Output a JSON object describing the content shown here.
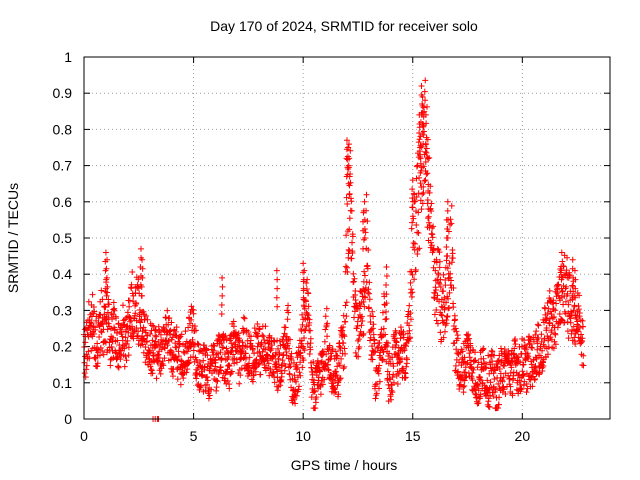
{
  "chart_data": {
    "type": "scatter",
    "title": "Day 170 of 2024, SRMTID for receiver solo",
    "xlabel": "GPS time / hours",
    "ylabel": "SRMTID / TECUs",
    "xlim": [
      0,
      24
    ],
    "ylim": [
      0,
      1
    ],
    "xticks": [
      0,
      5,
      10,
      15,
      20
    ],
    "xtick_labels": [
      "0",
      "5",
      "10",
      "15",
      "20"
    ],
    "yticks": [
      0,
      0.1,
      0.2,
      0.3,
      0.4,
      0.5,
      0.6,
      0.7,
      0.8,
      0.9,
      1
    ],
    "ytick_labels": [
      "0",
      "0.1",
      "0.2",
      "0.3",
      "0.4",
      "0.5",
      "0.6",
      "0.7",
      "0.8",
      "0.9",
      "1"
    ],
    "grid": true,
    "marker": "+",
    "color": "#ff0000",
    "series": [
      {
        "name": "solo",
        "x": [
          0.0,
          0.1,
          0.2,
          0.3,
          0.4,
          0.5,
          0.6,
          0.7,
          0.8,
          0.9,
          1.0,
          1.1,
          1.2,
          1.3,
          1.4,
          1.5,
          1.6,
          1.7,
          1.8,
          1.9,
          2.0,
          2.1,
          2.2,
          2.3,
          2.4,
          2.5,
          2.6,
          2.7,
          2.8,
          2.9,
          3.0,
          3.1,
          3.2,
          3.3,
          3.4,
          3.5,
          3.6,
          3.7,
          3.8,
          3.9,
          4.0,
          4.1,
          4.2,
          4.3,
          4.4,
          4.5,
          4.6,
          4.7,
          4.8,
          4.9,
          5.0,
          5.1,
          5.2,
          5.3,
          5.4,
          5.5,
          5.6,
          5.7,
          5.8,
          5.9,
          6.0,
          6.1,
          6.2,
          6.3,
          6.4,
          6.5,
          6.6,
          6.7,
          6.8,
          6.9,
          7.0,
          7.1,
          7.2,
          7.3,
          7.4,
          7.5,
          7.6,
          7.7,
          7.8,
          7.9,
          8.0,
          8.1,
          8.2,
          8.3,
          8.4,
          8.5,
          8.6,
          8.7,
          8.8,
          8.9,
          9.0,
          9.1,
          9.2,
          9.3,
          9.4,
          9.5,
          9.6,
          9.7,
          9.8,
          9.9,
          10.0,
          10.1,
          10.2,
          10.3,
          10.4,
          10.5,
          10.6,
          10.7,
          10.8,
          10.9,
          11.0,
          11.1,
          11.2,
          11.3,
          11.4,
          11.5,
          11.6,
          11.7,
          11.8,
          11.9,
          12.0,
          12.1,
          12.2,
          12.3,
          12.4,
          12.5,
          12.6,
          12.7,
          12.8,
          12.9,
          13.0,
          13.1,
          13.2,
          13.3,
          13.4,
          13.5,
          13.6,
          13.7,
          13.8,
          13.9,
          14.0,
          14.1,
          14.2,
          14.3,
          14.4,
          14.5,
          14.6,
          14.7,
          14.8,
          14.9,
          15.0,
          15.1,
          15.2,
          15.3,
          15.4,
          15.5,
          15.6,
          15.7,
          15.8,
          15.9,
          16.0,
          16.1,
          16.2,
          16.3,
          16.4,
          16.5,
          16.6,
          16.7,
          16.8,
          16.9,
          17.0,
          17.1,
          17.2,
          17.3,
          17.4,
          17.5,
          17.6,
          17.7,
          17.8,
          17.9,
          18.0,
          18.1,
          18.2,
          18.3,
          18.4,
          18.5,
          18.6,
          18.7,
          18.8,
          18.9,
          19.0,
          19.1,
          19.2,
          19.3,
          19.4,
          19.5,
          19.6,
          19.7,
          19.8,
          19.9,
          20.0,
          20.1,
          20.2,
          20.3,
          20.4,
          20.5,
          20.6,
          20.7,
          20.8,
          20.9,
          21.0,
          21.1,
          21.2,
          21.3,
          21.4,
          21.5,
          21.6,
          21.7,
          21.8,
          21.9,
          22.0,
          22.1,
          22.2,
          22.3,
          22.4,
          22.5,
          22.6,
          22.7,
          22.8
        ],
        "y": [
          0.2,
          0.18,
          0.25,
          0.22,
          0.27,
          0.24,
          0.2,
          0.23,
          0.28,
          0.22,
          0.3,
          0.26,
          0.21,
          0.24,
          0.25,
          0.22,
          0.19,
          0.21,
          0.24,
          0.2,
          0.23,
          0.27,
          0.31,
          0.29,
          0.33,
          0.3,
          0.27,
          0.24,
          0.22,
          0.21,
          0.2,
          0.19,
          0.21,
          0.18,
          0.2,
          0.17,
          0.19,
          0.21,
          0.23,
          0.22,
          0.2,
          0.18,
          0.19,
          0.17,
          0.16,
          0.17,
          0.19,
          0.2,
          0.22,
          0.25,
          0.23,
          0.18,
          0.15,
          0.14,
          0.13,
          0.15,
          0.14,
          0.12,
          0.13,
          0.15,
          0.14,
          0.16,
          0.18,
          0.2,
          0.17,
          0.15,
          0.14,
          0.18,
          0.21,
          0.19,
          0.18,
          0.16,
          0.2,
          0.22,
          0.19,
          0.18,
          0.17,
          0.16,
          0.19,
          0.21,
          0.19,
          0.18,
          0.2,
          0.19,
          0.17,
          0.16,
          0.18,
          0.17,
          0.15,
          0.14,
          0.16,
          0.18,
          0.22,
          0.27,
          0.15,
          0.11,
          0.1,
          0.12,
          0.14,
          0.19,
          0.24,
          0.27,
          0.31,
          0.2,
          0.1,
          0.08,
          0.09,
          0.11,
          0.13,
          0.15,
          0.2,
          0.24,
          0.15,
          0.13,
          0.12,
          0.14,
          0.13,
          0.17,
          0.21,
          0.22,
          0.52,
          0.62,
          0.55,
          0.33,
          0.26,
          0.24,
          0.28,
          0.27,
          0.35,
          0.5,
          0.32,
          0.23,
          0.21,
          0.12,
          0.14,
          0.16,
          0.24,
          0.28,
          0.21,
          0.11,
          0.12,
          0.15,
          0.18,
          0.16,
          0.19,
          0.18,
          0.17,
          0.18,
          0.22,
          0.34,
          0.48,
          0.54,
          0.58,
          0.63,
          0.68,
          0.75,
          0.83,
          0.64,
          0.55,
          0.45,
          0.4,
          0.35,
          0.38,
          0.27,
          0.31,
          0.32,
          0.4,
          0.43,
          0.48,
          0.22,
          0.18,
          0.15,
          0.13,
          0.14,
          0.16,
          0.2,
          0.17,
          0.15,
          0.13,
          0.11,
          0.1,
          0.12,
          0.14,
          0.13,
          0.11,
          0.1,
          0.12,
          0.11,
          0.09,
          0.1,
          0.12,
          0.14,
          0.13,
          0.15,
          0.14,
          0.12,
          0.15,
          0.16,
          0.14,
          0.13,
          0.16,
          0.15,
          0.14,
          0.17,
          0.15,
          0.16,
          0.18,
          0.2,
          0.17,
          0.19,
          0.22,
          0.24,
          0.27,
          0.29,
          0.24,
          0.28,
          0.31,
          0.33,
          0.36,
          0.35,
          0.38,
          0.31,
          0.32,
          0.3,
          0.29,
          0.27,
          0.28,
          0.26,
          0.17
        ],
        "spread": [
          0.05,
          0.06,
          0.06,
          0.05,
          0.06,
          0.06,
          0.05,
          0.05,
          0.06,
          0.05,
          0.07,
          0.07,
          0.05,
          0.05,
          0.06,
          0.05,
          0.05,
          0.05,
          0.06,
          0.05,
          0.06,
          0.07,
          0.07,
          0.06,
          0.07,
          0.07,
          0.06,
          0.05,
          0.05,
          0.05,
          0.05,
          0.05,
          0.05,
          0.05,
          0.05,
          0.05,
          0.05,
          0.05,
          0.05,
          0.05,
          0.05,
          0.05,
          0.05,
          0.05,
          0.05,
          0.05,
          0.05,
          0.05,
          0.05,
          0.06,
          0.05,
          0.05,
          0.05,
          0.05,
          0.05,
          0.05,
          0.05,
          0.05,
          0.05,
          0.05,
          0.05,
          0.05,
          0.05,
          0.06,
          0.05,
          0.05,
          0.05,
          0.05,
          0.05,
          0.05,
          0.05,
          0.05,
          0.05,
          0.05,
          0.05,
          0.05,
          0.05,
          0.05,
          0.05,
          0.05,
          0.05,
          0.05,
          0.05,
          0.05,
          0.05,
          0.05,
          0.05,
          0.05,
          0.05,
          0.05,
          0.05,
          0.05,
          0.06,
          0.06,
          0.05,
          0.05,
          0.05,
          0.05,
          0.05,
          0.06,
          0.06,
          0.07,
          0.07,
          0.06,
          0.05,
          0.05,
          0.05,
          0.05,
          0.05,
          0.05,
          0.06,
          0.06,
          0.05,
          0.05,
          0.05,
          0.05,
          0.05,
          0.05,
          0.05,
          0.06,
          0.13,
          0.14,
          0.12,
          0.07,
          0.06,
          0.06,
          0.06,
          0.06,
          0.08,
          0.1,
          0.07,
          0.06,
          0.05,
          0.05,
          0.05,
          0.05,
          0.06,
          0.07,
          0.05,
          0.05,
          0.05,
          0.05,
          0.05,
          0.05,
          0.05,
          0.05,
          0.05,
          0.05,
          0.06,
          0.08,
          0.1,
          0.11,
          0.12,
          0.12,
          0.12,
          0.1,
          0.09,
          0.1,
          0.09,
          0.09,
          0.08,
          0.08,
          0.08,
          0.07,
          0.07,
          0.07,
          0.08,
          0.09,
          0.09,
          0.06,
          0.05,
          0.05,
          0.05,
          0.05,
          0.05,
          0.05,
          0.05,
          0.05,
          0.05,
          0.05,
          0.05,
          0.05,
          0.05,
          0.05,
          0.05,
          0.05,
          0.05,
          0.05,
          0.05,
          0.05,
          0.05,
          0.05,
          0.05,
          0.05,
          0.05,
          0.05,
          0.05,
          0.05,
          0.05,
          0.05,
          0.05,
          0.05,
          0.05,
          0.05,
          0.05,
          0.05,
          0.05,
          0.05,
          0.05,
          0.05,
          0.06,
          0.06,
          0.06,
          0.06,
          0.06,
          0.06,
          0.06,
          0.06,
          0.06,
          0.07,
          0.07,
          0.07,
          0.06,
          0.06,
          0.06,
          0.06,
          0.06,
          0.06,
          0.06,
          0.05
        ],
        "peaks": [
          {
            "x": 1.0,
            "y": 0.46
          },
          {
            "x": 1.05,
            "y": 0.44
          },
          {
            "x": 2.6,
            "y": 0.47
          },
          {
            "x": 2.65,
            "y": 0.44
          },
          {
            "x": 6.3,
            "y": 0.39
          },
          {
            "x": 8.8,
            "y": 0.41
          },
          {
            "x": 10.0,
            "y": 0.43
          },
          {
            "x": 10.05,
            "y": 0.41
          },
          {
            "x": 12.0,
            "y": 0.77
          },
          {
            "x": 12.05,
            "y": 0.75
          },
          {
            "x": 12.1,
            "y": 0.72
          },
          {
            "x": 12.8,
            "y": 0.6
          },
          {
            "x": 12.75,
            "y": 0.57
          },
          {
            "x": 13.8,
            "y": 0.42
          },
          {
            "x": 15.0,
            "y": 0.66
          },
          {
            "x": 15.3,
            "y": 0.84
          },
          {
            "x": 15.4,
            "y": 0.92
          },
          {
            "x": 15.45,
            "y": 0.89
          },
          {
            "x": 15.5,
            "y": 0.86
          },
          {
            "x": 15.35,
            "y": 0.78
          },
          {
            "x": 15.6,
            "y": 0.76
          },
          {
            "x": 15.7,
            "y": 0.63
          },
          {
            "x": 16.6,
            "y": 0.6
          },
          {
            "x": 16.55,
            "y": 0.55
          },
          {
            "x": 21.8,
            "y": 0.46
          },
          {
            "x": 22.3,
            "y": 0.44
          },
          {
            "x": 22.4,
            "y": 0.41
          }
        ],
        "zeros": [
          {
            "x": 3.15,
            "y": 0.0
          },
          {
            "x": 3.25,
            "y": 0.0
          },
          {
            "x": 3.35,
            "y": 0.0
          },
          {
            "x": 3.4,
            "y": 0.0
          }
        ]
      }
    ]
  }
}
